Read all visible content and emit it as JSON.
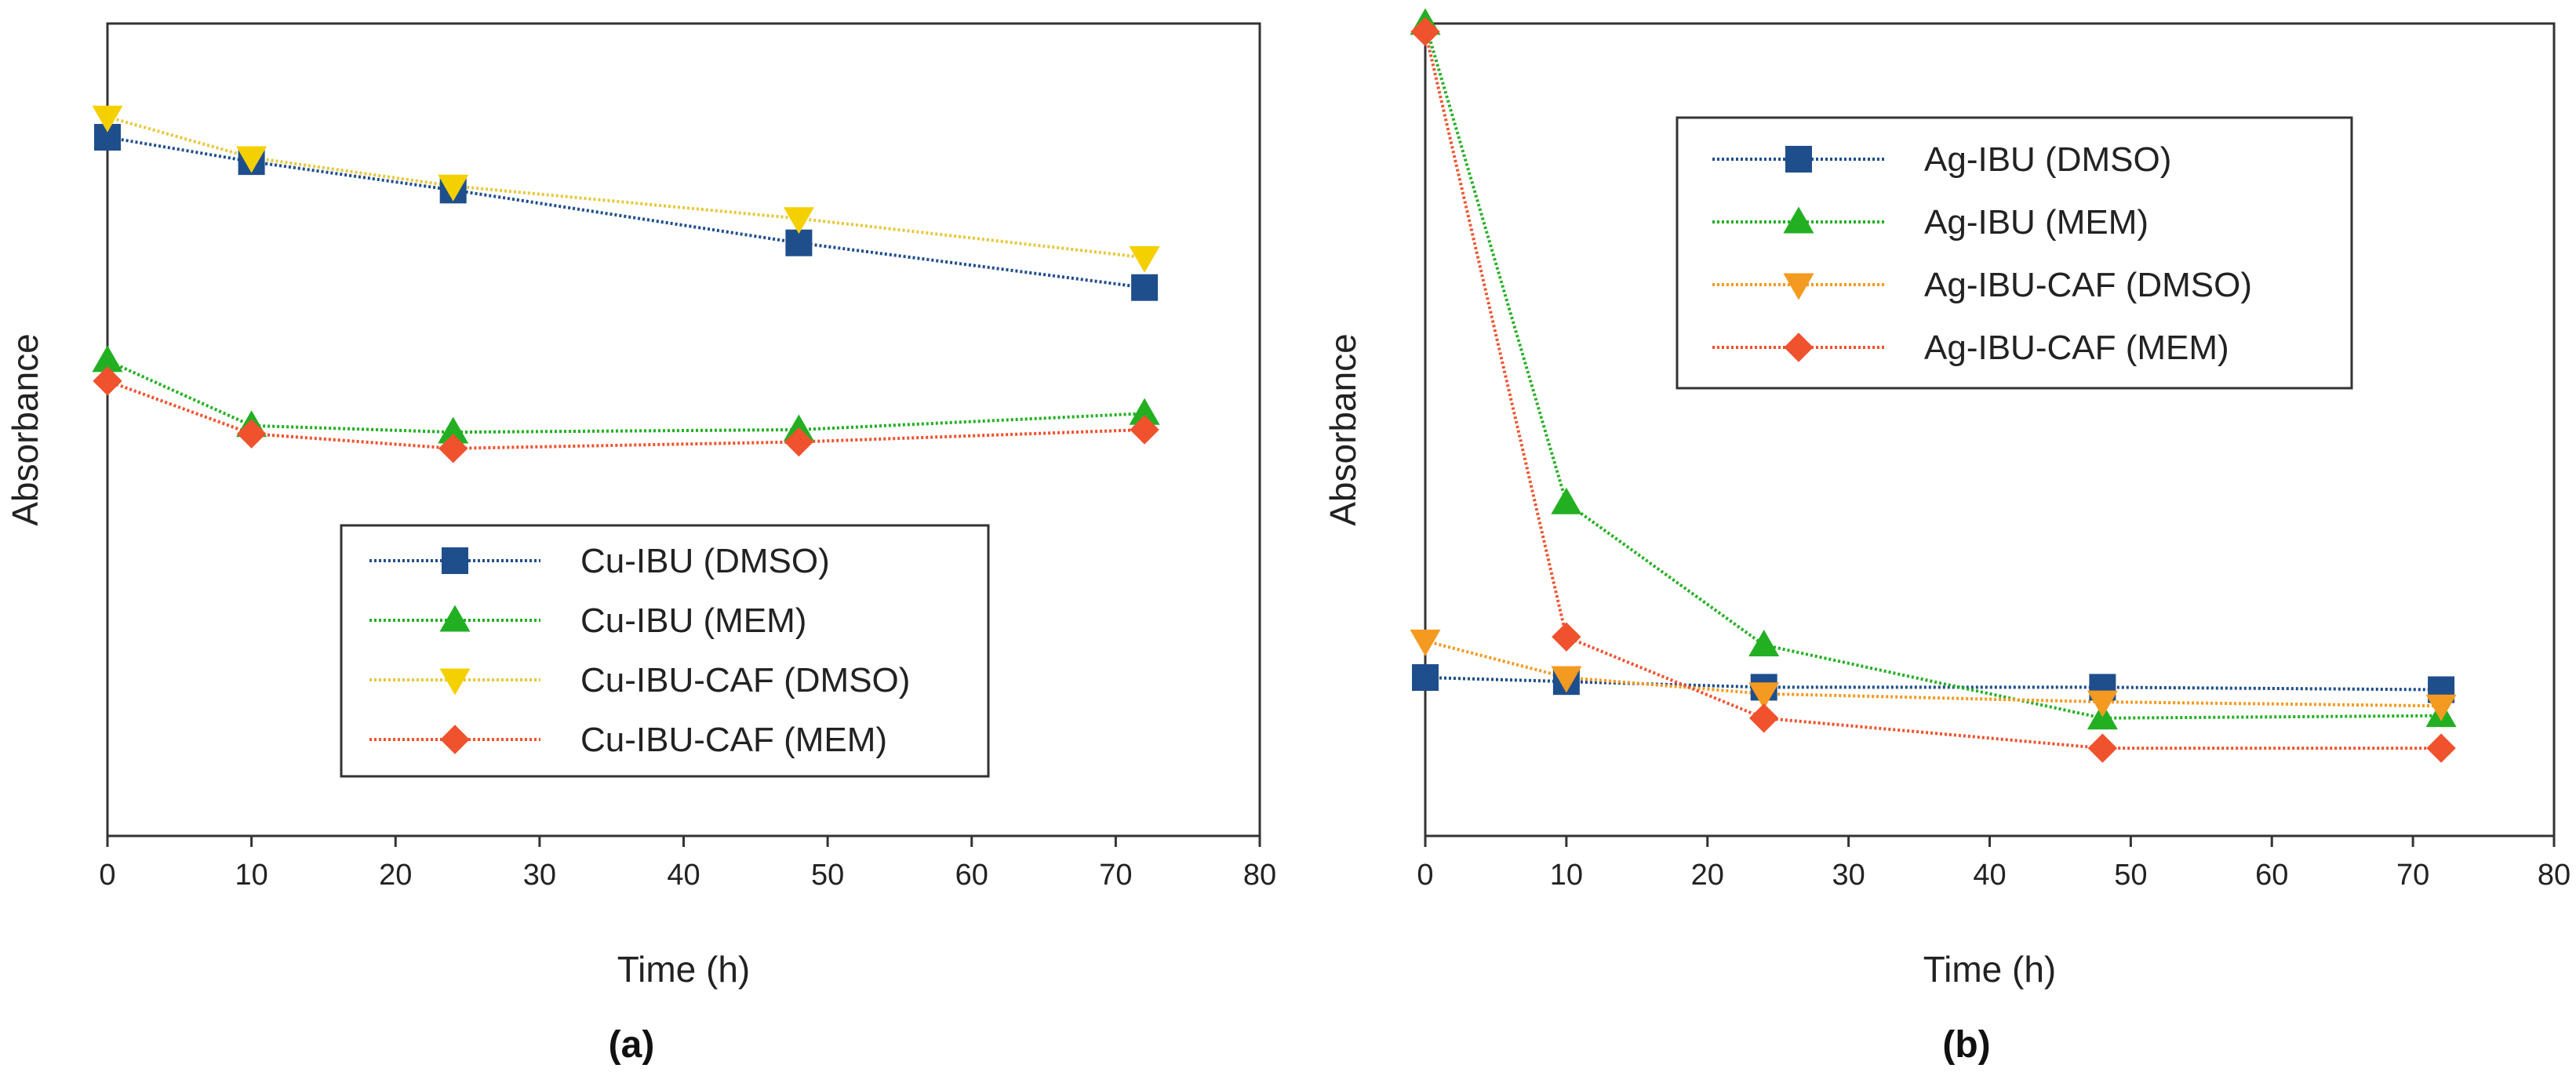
{
  "colors": {
    "blue": "#1f4e8c",
    "green": "#22b022",
    "yellow": "#f5d000",
    "yellow_line": "#e8c83c",
    "orange": "#f59a20",
    "red": "#f0522e",
    "axes": "#333333"
  },
  "panels": [
    {
      "caption": "(a)"
    },
    {
      "caption": "(b)"
    }
  ],
  "chart_data": [
    {
      "type": "line",
      "xlabel": "Time (h)",
      "ylabel": "Absorbance",
      "xlim": [
        0,
        80
      ],
      "xticks": [
        "0",
        "10",
        "20",
        "30",
        "40",
        "50",
        "60",
        "70",
        "80"
      ],
      "ylim": [
        0,
        1
      ],
      "yticks": [],
      "grid": false,
      "legend_position": "bottom-center",
      "series": [
        {
          "name": "Cu-IBU (DMSO)",
          "marker": "square",
          "color": "blue",
          "x": [
            0,
            10,
            24,
            48,
            72
          ],
          "y": [
            0.86,
            0.83,
            0.795,
            0.73,
            0.675
          ]
        },
        {
          "name": "Cu-IBU (MEM)",
          "marker": "triangle-up",
          "color": "green",
          "x": [
            0,
            10,
            24,
            48,
            72
          ],
          "y": [
            0.585,
            0.505,
            0.497,
            0.5,
            0.52
          ]
        },
        {
          "name": "Cu-IBU-CAF (DMSO)",
          "marker": "triangle-down",
          "color": "yellow",
          "x": [
            0,
            10,
            24,
            48,
            72
          ],
          "y": [
            0.885,
            0.835,
            0.8,
            0.76,
            0.712
          ]
        },
        {
          "name": "Cu-IBU-CAF (MEM)",
          "marker": "diamond",
          "color": "red",
          "x": [
            0,
            10,
            24,
            48,
            72
          ],
          "y": [
            0.56,
            0.495,
            0.477,
            0.485,
            0.5
          ]
        }
      ]
    },
    {
      "type": "line",
      "xlabel": "Time (h)",
      "ylabel": "Absorbance",
      "xlim": [
        0,
        80
      ],
      "xticks": [
        "0",
        "10",
        "20",
        "30",
        "40",
        "50",
        "60",
        "70",
        "80"
      ],
      "ylim": [
        0,
        1
      ],
      "yticks": [],
      "grid": false,
      "legend_position": "top-right",
      "series": [
        {
          "name": "Ag-IBU (DMSO)",
          "marker": "square",
          "color": "blue",
          "x": [
            0,
            10,
            24,
            48,
            72
          ],
          "y": [
            0.195,
            0.19,
            0.183,
            0.183,
            0.18
          ]
        },
        {
          "name": "Ag-IBU (MEM)",
          "marker": "triangle-up",
          "color": "green",
          "x": [
            0,
            10,
            24,
            48,
            72
          ],
          "y": [
            1.0,
            0.41,
            0.235,
            0.145,
            0.148
          ]
        },
        {
          "name": "Ag-IBU-CAF (DMSO)",
          "marker": "triangle-down",
          "color": "orange",
          "x": [
            0,
            10,
            24,
            48,
            72
          ],
          "y": [
            0.24,
            0.195,
            0.175,
            0.165,
            0.16
          ]
        },
        {
          "name": "Ag-IBU-CAF (MEM)",
          "marker": "diamond",
          "color": "red",
          "x": [
            0,
            10,
            24,
            48,
            72
          ],
          "y": [
            0.99,
            0.245,
            0.145,
            0.108,
            0.108
          ]
        }
      ]
    }
  ]
}
